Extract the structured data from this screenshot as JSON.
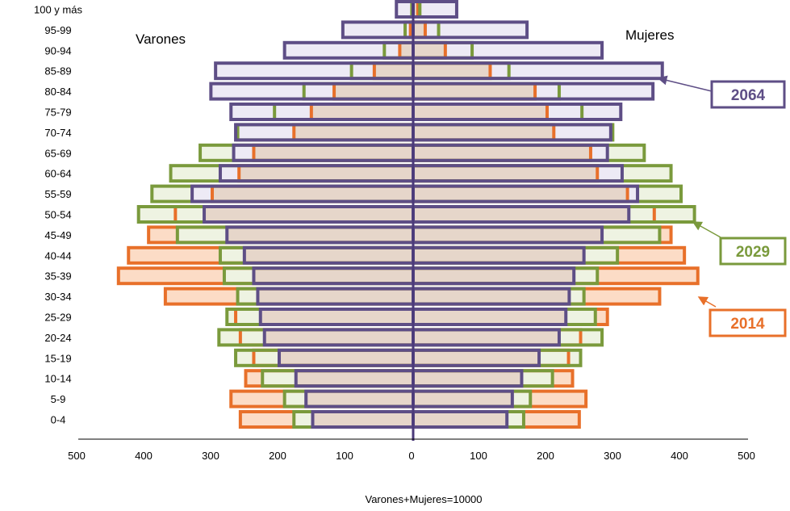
{
  "chart_data": {
    "type": "bar",
    "subtype": "population-pyramid",
    "left_group_label": "Varones",
    "right_group_label": "Mujeres",
    "xlabel": "Varones+Mujeres=10000",
    "x_tick_labels": [
      "500",
      "400",
      "300",
      "200",
      "100",
      "0",
      "100",
      "200",
      "300",
      "400",
      "500"
    ],
    "x_tick_values": [
      -500,
      -400,
      -300,
      -200,
      -100,
      0,
      100,
      200,
      300,
      400,
      500
    ],
    "xlim": [
      -500,
      500
    ],
    "categories": [
      "100 y más",
      "95-99",
      "90-94",
      "85-89",
      "80-84",
      "75-79",
      "70-74",
      "65-69",
      "60-64",
      "55-59",
      "50-54",
      "45-49",
      "40-44",
      "35-39",
      "30-34",
      "25-29",
      "20-24",
      "15-19",
      "10-14",
      "5-9",
      "0-4"
    ],
    "series": [
      {
        "name": "2014",
        "stroke": "#E8702A",
        "fill": "#FCDCC6",
        "varones": [
          1,
          4,
          20,
          58,
          118,
          152,
          178,
          238,
          260,
          300,
          355,
          395,
          425,
          440,
          370,
          265,
          258,
          238,
          250,
          272,
          258
        ],
        "mujeres": [
          7,
          18,
          48,
          115,
          182,
          200,
          210,
          265,
          275,
          320,
          360,
          385,
          405,
          425,
          368,
          290,
          250,
          232,
          238,
          258,
          248
        ]
      },
      {
        "name": "2029",
        "stroke": "#7A9A3C",
        "fill": "#EEF3E2",
        "varones": [
          2,
          12,
          43,
          92,
          163,
          207,
          262,
          318,
          362,
          390,
          410,
          352,
          288,
          282,
          262,
          278,
          290,
          265,
          225,
          192,
          178
        ],
        "mujeres": [
          10,
          38,
          88,
          143,
          218,
          252,
          298,
          345,
          385,
          400,
          420,
          368,
          305,
          275,
          255,
          272,
          282,
          250,
          208,
          175,
          165
        ]
      },
      {
        "name": "2064",
        "stroke": "#5E4E86",
        "fill": "#EDEAF5",
        "varones": [
          25,
          105,
          192,
          295,
          302,
          272,
          265,
          268,
          288,
          330,
          312,
          278,
          252,
          238,
          232,
          228,
          222,
          200,
          175,
          160,
          150
        ],
        "mujeres": [
          65,
          170,
          282,
          372,
          358,
          310,
          295,
          290,
          312,
          335,
          322,
          282,
          255,
          240,
          233,
          228,
          218,
          188,
          162,
          148,
          140
        ]
      }
    ],
    "legend": [
      {
        "label": "2064",
        "position": "right, near 85-89",
        "color": "#5E4E86"
      },
      {
        "label": "2029",
        "position": "right, near 50-54",
        "color": "#7A9A3C"
      },
      {
        "label": "2014",
        "position": "right, near 35-39",
        "color": "#E8702A"
      }
    ],
    "overlap_fill": "#E6D6CA",
    "axis_color": "#000000",
    "center_line_color": "#4B3A7A",
    "grid": false
  }
}
